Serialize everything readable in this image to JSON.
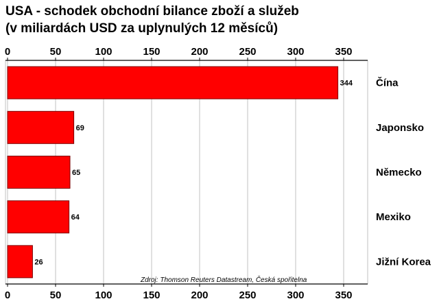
{
  "title_line1": "USA - schodek obchodní bilance zboží a služeb",
  "title_line2": "(v miliardách USD za uplynulých 12 měsíců)",
  "source_note": "Zdroj: Thomson Reuters Datastream, Česká spořitelna",
  "colors": {
    "bar": "#ff0000",
    "bar_stroke": "#7a0000",
    "grid": "#c0c0c0",
    "axis": "#000000"
  },
  "chart_data": {
    "type": "bar",
    "orientation": "horizontal",
    "categories": [
      "Čína",
      "Japonsko",
      "Německo",
      "Mexiko",
      "Jižní Korea"
    ],
    "values": [
      344,
      69,
      65,
      64,
      26
    ],
    "data_labels": [
      "344",
      "69",
      "65",
      "64",
      "26"
    ],
    "xlim": [
      0,
      370
    ],
    "ticks": [
      0,
      50,
      100,
      150,
      200,
      250,
      300,
      350
    ],
    "tick_labels": [
      "0",
      "50",
      "100",
      "150",
      "200",
      "250",
      "300",
      "350"
    ],
    "grid": true,
    "tick_labels_top_and_bottom": true,
    "category_labels_side": "right"
  }
}
